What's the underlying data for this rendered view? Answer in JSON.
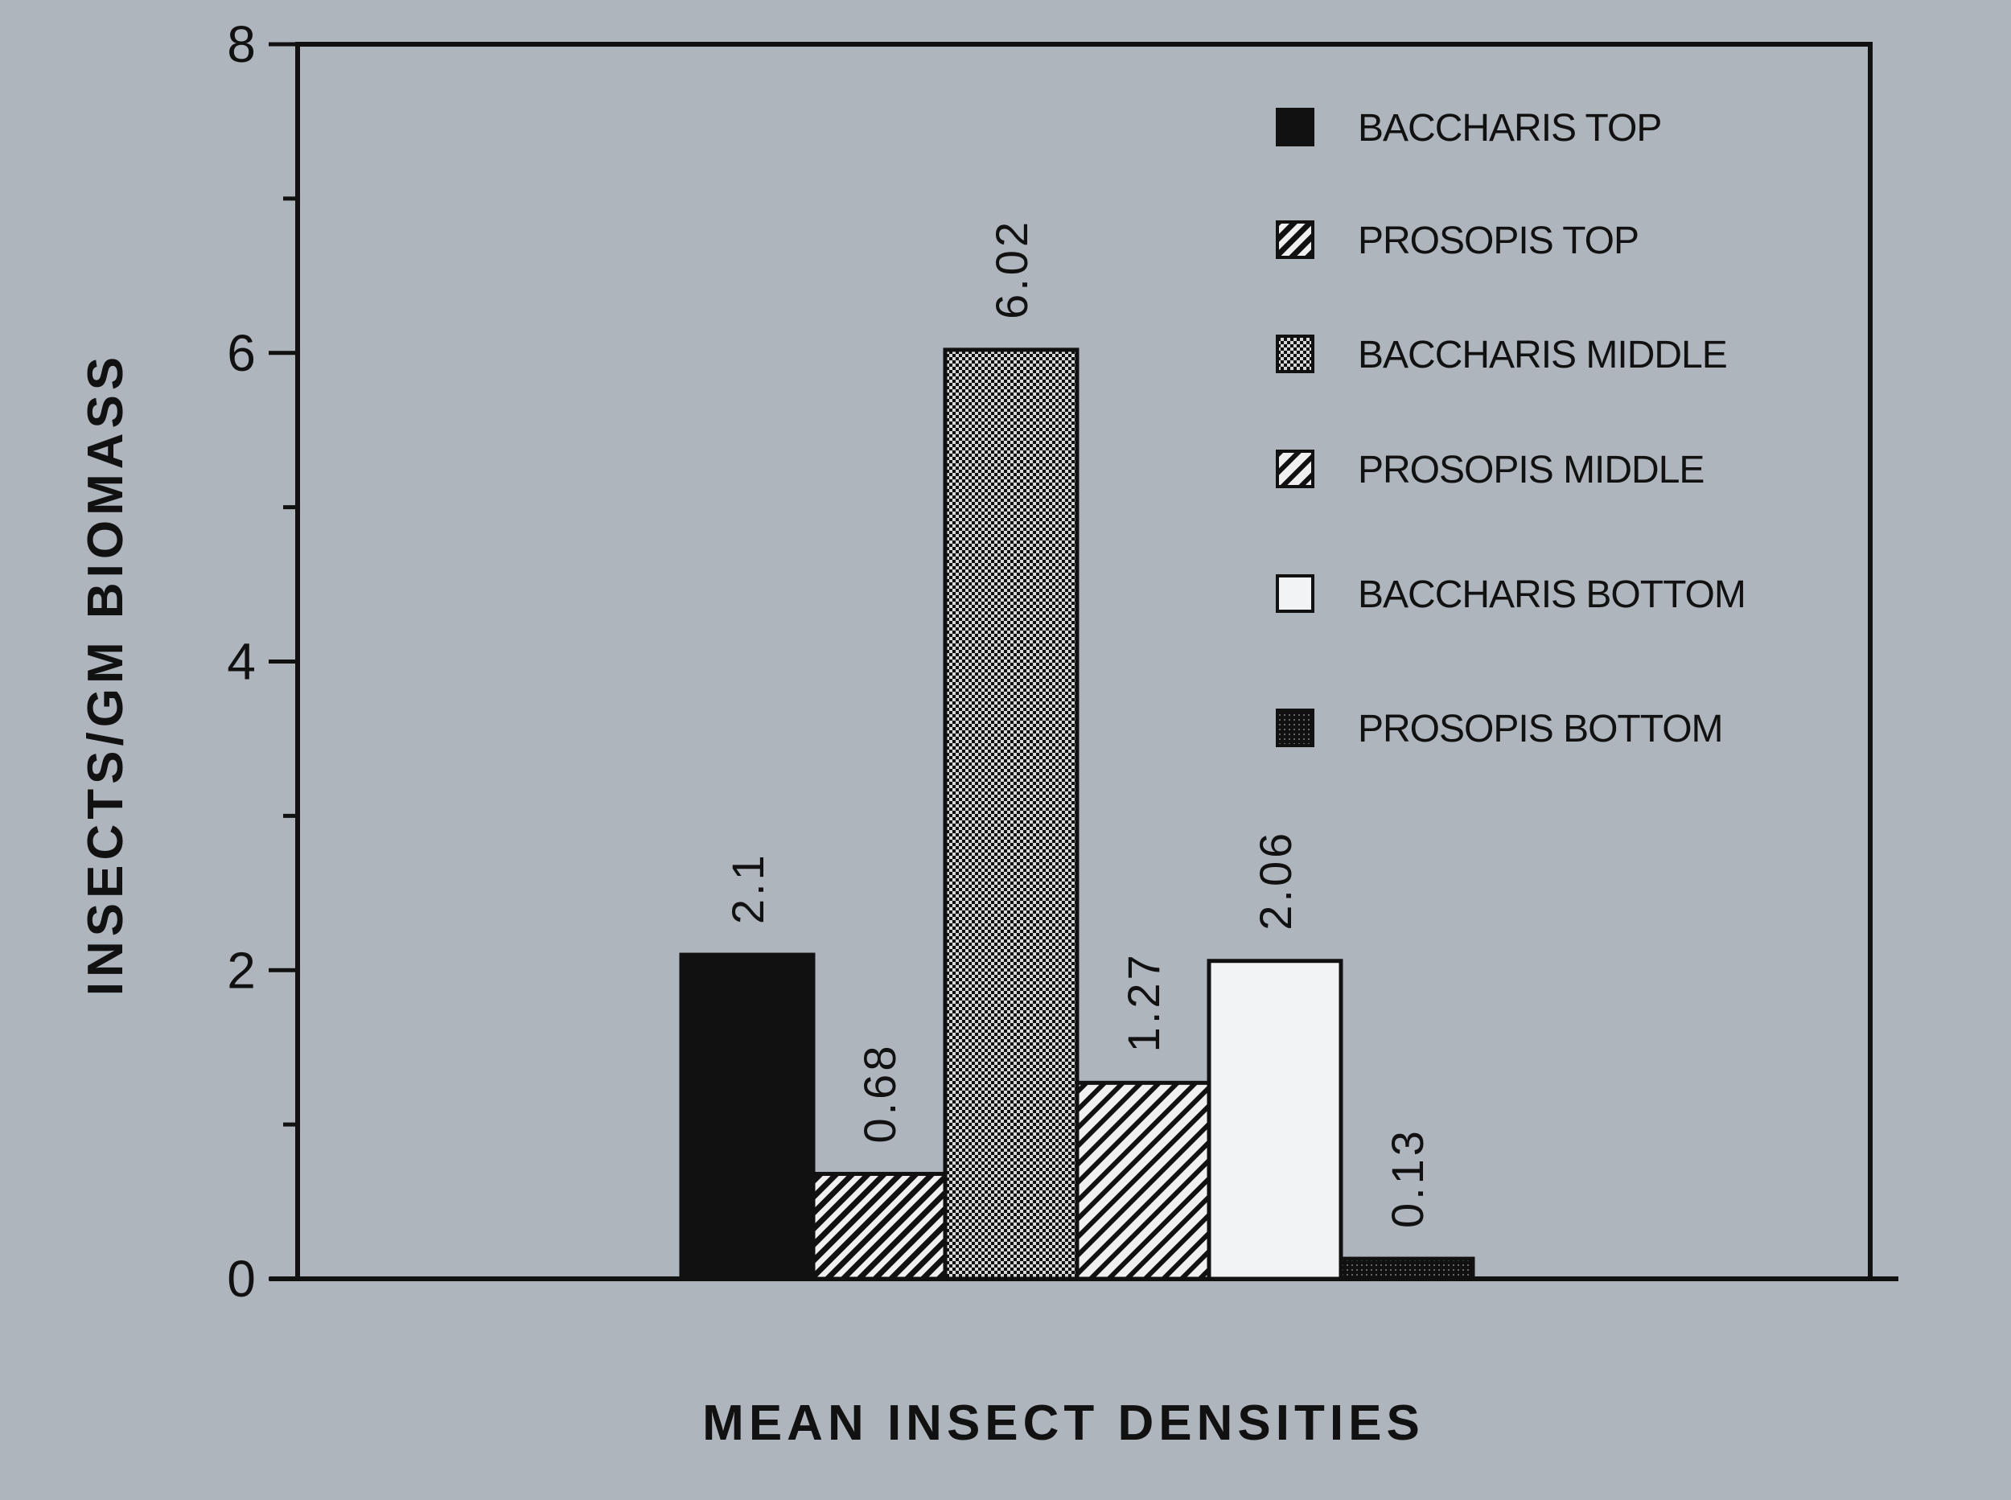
{
  "chart_data": {
    "type": "bar",
    "title": "",
    "xlabel": "MEAN INSECT DENSITIES",
    "ylabel": "INSECTS/GM BIOMASS",
    "ylim": [
      0,
      8
    ],
    "yticks": [
      0,
      2,
      4,
      6,
      8
    ],
    "grid": false,
    "legend_position": "top-right",
    "categories": [
      "BACCHARIS TOP",
      "PROSOPIS TOP",
      "BACCHARIS MIDDLE",
      "PROSOPIS MIDDLE",
      "BACCHARIS BOTTOM",
      "PROSOPIS BOTTOM"
    ],
    "values": [
      2.1,
      0.68,
      6.02,
      1.27,
      2.06,
      0.13
    ],
    "data_labels": [
      "2.1",
      "0.68",
      "6.02",
      "1.27",
      "2.06",
      "0.13"
    ],
    "fills": [
      "solid-black",
      "diagonal-hatch",
      "dense-dots",
      "diagonal-hatch-light",
      "white",
      "dark-dots"
    ],
    "colors": {
      "background": "#aeb5bd",
      "ink": "#111111",
      "white_fill": "#f2f3f4"
    }
  }
}
